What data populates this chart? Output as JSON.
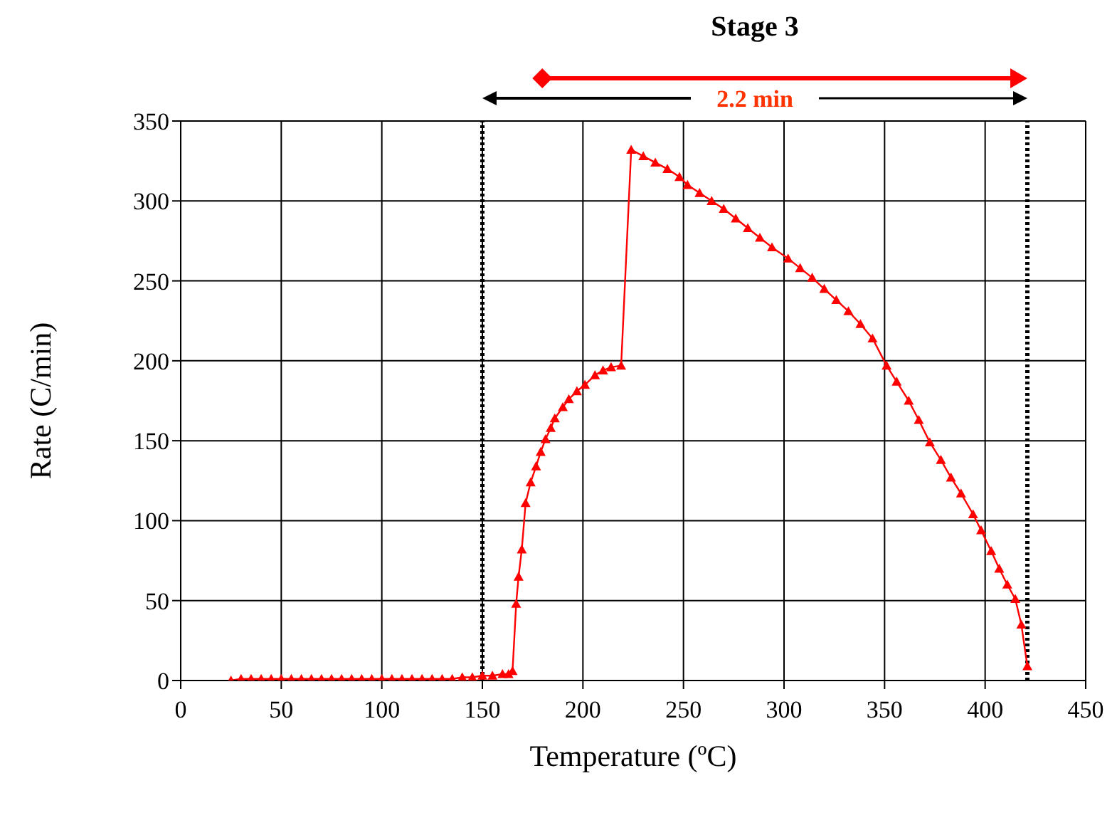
{
  "chart_data": {
    "type": "line",
    "title": "Stage 3",
    "xlabel": "Temperature (ºC)",
    "ylabel": "Rate (C/min)",
    "annotations": [
      "2.2 min"
    ],
    "series": [
      {
        "color": "#ff0000",
        "x": [
          25,
          30,
          35,
          40,
          45,
          50,
          55,
          60,
          65,
          70,
          75,
          80,
          85,
          90,
          95,
          100,
          105,
          110,
          115,
          120,
          125,
          130,
          135,
          140,
          145,
          150,
          155,
          160,
          163,
          165,
          166.8,
          168,
          169.6,
          171.5,
          174,
          176.7,
          179,
          181.4,
          184,
          186,
          190,
          193,
          197,
          201,
          206,
          210,
          214,
          219,
          224,
          230,
          236,
          242,
          248,
          252,
          258,
          264,
          270,
          276,
          282,
          288,
          294,
          302,
          308,
          314,
          320,
          326,
          332,
          338,
          344,
          351,
          356,
          362,
          367,
          372.5,
          378,
          383,
          388,
          394,
          398,
          403,
          407,
          411,
          415,
          418,
          421
        ],
        "values": [
          0,
          1,
          1,
          1,
          1,
          1,
          1,
          1,
          1,
          1,
          1,
          1,
          1,
          1,
          1,
          1,
          1,
          1,
          1,
          1,
          1,
          1,
          1,
          2,
          2,
          3,
          3,
          4,
          4,
          6,
          48,
          65,
          82,
          111,
          124,
          134,
          143,
          151,
          158,
          164,
          171,
          176,
          181,
          185,
          191,
          194,
          196,
          197,
          332,
          328,
          324,
          320,
          315,
          310,
          305,
          300,
          295,
          289,
          283,
          277,
          271,
          264,
          258,
          252,
          245,
          238,
          231,
          223,
          214,
          197,
          187,
          175,
          163,
          149,
          138,
          127,
          117,
          104,
          94,
          81,
          70,
          60,
          51,
          35,
          9
        ]
      }
    ],
    "xlim": [
      0,
      450
    ],
    "xticks": [
      0,
      50,
      100,
      150,
      200,
      250,
      300,
      350,
      400,
      450
    ],
    "ylim": [
      0,
      350
    ],
    "yticks": [
      0,
      50,
      100,
      150,
      200,
      250,
      300,
      350
    ],
    "grid": true,
    "marker": "triangle",
    "line_style": "solid",
    "ref_lines": [
      {
        "axis": "x",
        "value": 150,
        "color": "#000000",
        "line_style": "dotted"
      },
      {
        "axis": "x",
        "value": 421,
        "color": "#000000",
        "line_style": "dotted"
      }
    ]
  }
}
